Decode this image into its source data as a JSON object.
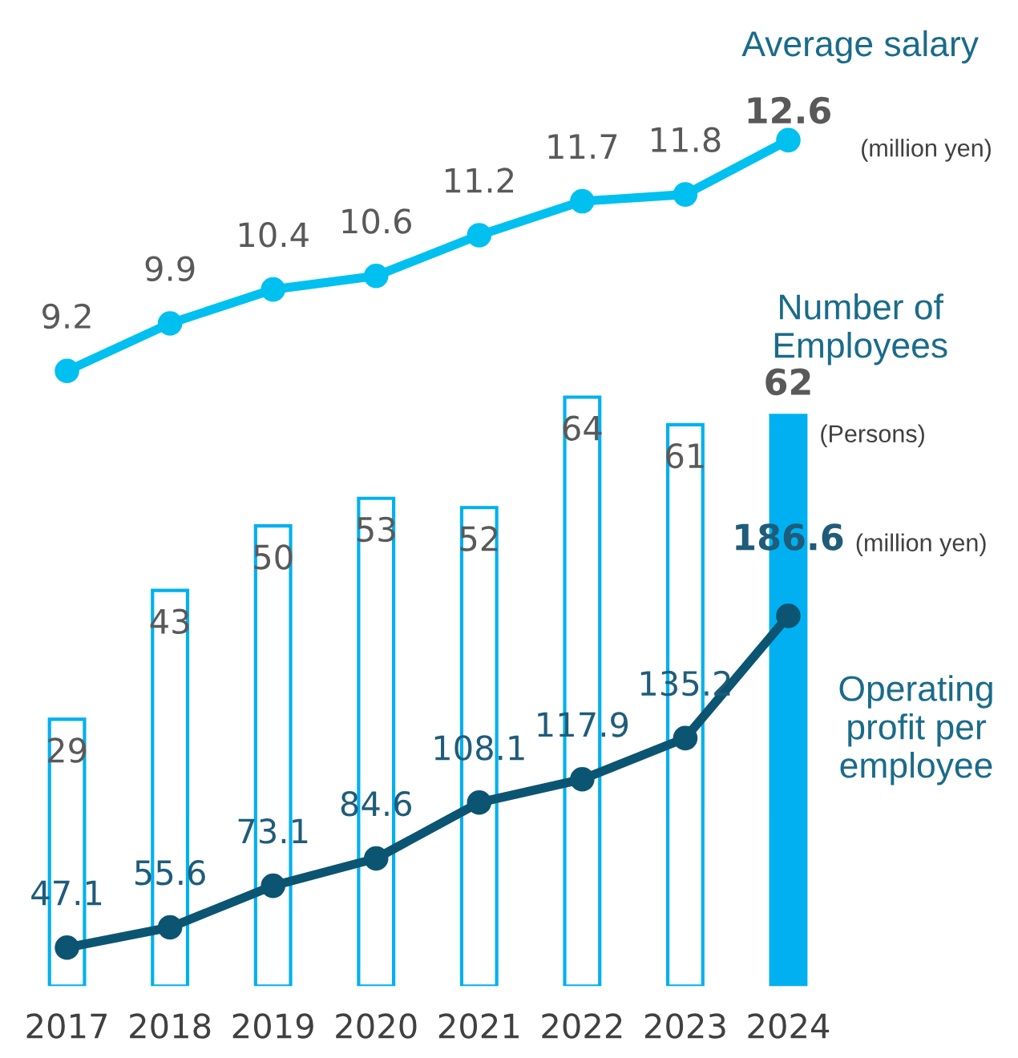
{
  "chart_data": [
    {
      "type": "line",
      "categories": [
        "2017",
        "2018",
        "2019",
        "2020",
        "2021",
        "2022",
        "2023",
        "2024"
      ],
      "series": [
        {
          "name": "Average salary",
          "color": "#00c0f0",
          "values": [
            9.2,
            9.9,
            10.4,
            10.6,
            11.2,
            11.7,
            11.8,
            12.6
          ]
        }
      ],
      "annotations": [
        "(million yen)"
      ],
      "data_labels": true,
      "marker": "circle",
      "line_style": "solid",
      "tick_labels": false,
      "legend": false,
      "grid": false
    },
    {
      "type": "bar",
      "categories": [
        "2017",
        "2018",
        "2019",
        "2020",
        "2021",
        "2022",
        "2023",
        "2024"
      ],
      "series": [
        {
          "name": "Number of Employees",
          "type": "bar",
          "color": "#00b0f0",
          "colors": [
            "#ffffff",
            "#ffffff",
            "#ffffff",
            "#ffffff",
            "#ffffff",
            "#ffffff",
            "#ffffff",
            "#00b0f0"
          ],
          "values": [
            29,
            43,
            50,
            53,
            52,
            64,
            61,
            62
          ]
        },
        {
          "name": "Operating profit per employee",
          "type": "line",
          "axis": "y2",
          "color": "#0b5572",
          "values": [
            47.1,
            55.6,
            73.1,
            84.6,
            108.1,
            117.9,
            135.2,
            186.6
          ]
        }
      ],
      "annotations": [
        "(Persons)",
        "(million yen)"
      ],
      "data_labels": true,
      "marker": "circle",
      "line_style": "solid",
      "tick_labels": "x",
      "legend": false,
      "grid": false
    }
  ]
}
